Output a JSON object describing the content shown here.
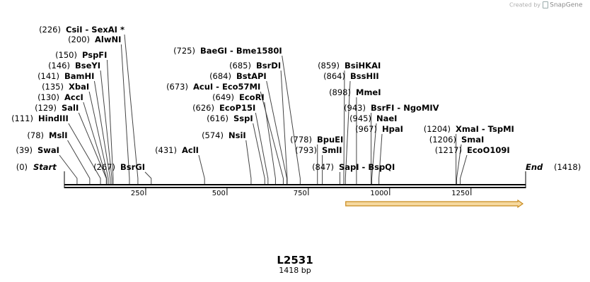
{
  "watermark": {
    "prefix": "Created by",
    "brand": "SnapGene",
    "icon": "snapgene-logo-icon"
  },
  "map": {
    "name": "L2531",
    "size_label": "1418 bp",
    "length": 1418,
    "ticks": [
      {
        "value": 250,
        "label": "250"
      },
      {
        "value": 500,
        "label": "500"
      },
      {
        "value": 750,
        "label": "750"
      },
      {
        "value": 1000,
        "label": "1000"
      },
      {
        "value": 1250,
        "label": "1250"
      }
    ],
    "terminals": [
      {
        "name": "Start",
        "pos": "(0)",
        "bp": 0
      },
      {
        "name": "End",
        "pos": "(1418)",
        "bp": 1418
      }
    ],
    "sites": [
      {
        "label": "SwaI",
        "pos": "(39)",
        "bp": 39
      },
      {
        "label": "MslI",
        "pos": "(78)",
        "bp": 78
      },
      {
        "label": "HindIII",
        "pos": "(111)",
        "bp": 111
      },
      {
        "label": "SalI",
        "pos": "(129)",
        "bp": 129
      },
      {
        "label": "AccI",
        "pos": "(130)",
        "bp": 130
      },
      {
        "label": "XbaI",
        "pos": "(135)",
        "bp": 135
      },
      {
        "label": "BamHI",
        "pos": "(141)",
        "bp": 141
      },
      {
        "label": "BseYI",
        "pos": "(146)",
        "bp": 146
      },
      {
        "label": "PspFI",
        "pos": "(150)",
        "bp": 150
      },
      {
        "label": "AlwNI",
        "pos": "(200)",
        "bp": 200
      },
      {
        "label": "CsiI  - SexAI *",
        "pos": "(226)",
        "bp": 226
      },
      {
        "label": "BsrGI",
        "pos": "(267)",
        "bp": 267
      },
      {
        "label": "AclI",
        "pos": "(431)",
        "bp": 431
      },
      {
        "label": "NsiI",
        "pos": "(574)",
        "bp": 574
      },
      {
        "label": "SspI",
        "pos": "(616)",
        "bp": 616
      },
      {
        "label": "EcoP15I",
        "pos": "(626)",
        "bp": 626
      },
      {
        "label": "EcoRI",
        "pos": "(649)",
        "bp": 649
      },
      {
        "label": "AcuI  - Eco57MI",
        "pos": "(673)",
        "bp": 673
      },
      {
        "label": "BstAPI",
        "pos": "(684)",
        "bp": 684
      },
      {
        "label": "BsrDI",
        "pos": "(685)",
        "bp": 685
      },
      {
        "label": "BaeGI  - Bme1580I",
        "pos": "(725)",
        "bp": 725
      },
      {
        "label": "BpuEI",
        "pos": "(778)",
        "bp": 778
      },
      {
        "label": "SmlI",
        "pos": "(793)",
        "bp": 793
      },
      {
        "label": "SapI  - BspQI",
        "pos": "(847)",
        "bp": 847
      },
      {
        "label": "BsiHKAI",
        "pos": "(859)",
        "bp": 859
      },
      {
        "label": "BssHII",
        "pos": "(864)",
        "bp": 864
      },
      {
        "label": "MmeI",
        "pos": "(898)",
        "bp": 898
      },
      {
        "label": "BsrFI  - NgoMIV",
        "pos": "(943)",
        "bp": 943
      },
      {
        "label": "NaeI",
        "pos": "(945)",
        "bp": 945
      },
      {
        "label": "HpaI",
        "pos": "(967)",
        "bp": 967
      },
      {
        "label": "XmaI  - TspMI",
        "pos": "(1204)",
        "bp": 1204
      },
      {
        "label": "SmaI",
        "pos": "(1206)",
        "bp": 1206
      },
      {
        "label": "EcoO109I",
        "pos": "(1217)",
        "bp": 1217
      }
    ],
    "feature": {
      "start": 865,
      "end": 1418,
      "color": "#c88a1e",
      "fill": "#f6d9a0",
      "direction": "forward"
    }
  }
}
